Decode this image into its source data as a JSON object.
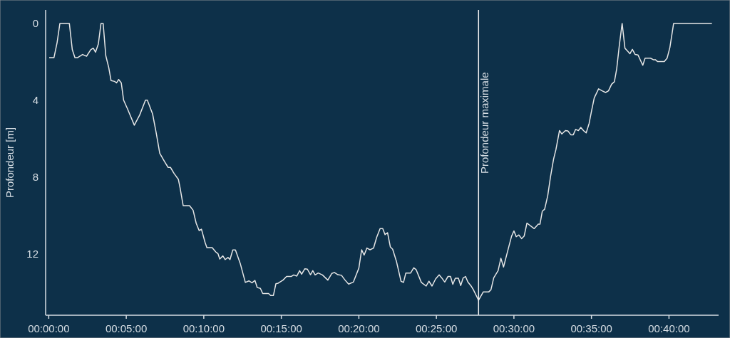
{
  "chart_data": {
    "type": "line",
    "ylabel": "Profondeur [m]",
    "x": [
      0.03,
      0.34,
      0.54,
      0.72,
      1.33,
      1.52,
      1.69,
      1.87,
      2.18,
      2.44,
      2.71,
      2.87,
      3.02,
      3.2,
      3.37,
      3.51,
      3.68,
      3.87,
      4.02,
      4.25,
      4.37,
      4.51,
      4.68,
      4.83,
      5.09,
      5.52,
      5.86,
      6.24,
      6.36,
      6.7,
      6.93,
      7.16,
      7.47,
      7.7,
      7.85,
      8.08,
      8.36,
      8.47,
      8.67,
      9.08,
      9.31,
      9.51,
      9.7,
      9.85,
      10.08,
      10.2,
      10.54,
      10.77,
      10.92,
      11.03,
      11.23,
      11.38,
      11.56,
      11.69,
      11.87,
      12.04,
      12.35,
      12.68,
      12.91,
      13.11,
      13.3,
      13.45,
      13.65,
      13.8,
      14.18,
      14.31,
      14.49,
      14.65,
      14.8,
      15.11,
      15.34,
      15.65,
      15.8,
      16.0,
      16.18,
      16.31,
      16.52,
      16.68,
      16.88,
      17.03,
      17.18,
      17.38,
      17.65,
      18.0,
      18.26,
      18.42,
      18.65,
      18.88,
      19.11,
      19.34,
      19.65,
      20.0,
      20.18,
      20.34,
      20.52,
      20.72,
      20.95,
      21.15,
      21.37,
      21.54,
      21.69,
      21.85,
      22.03,
      22.18,
      22.42,
      22.72,
      22.88,
      23.03,
      23.34,
      23.54,
      23.69,
      24.03,
      24.34,
      24.52,
      24.72,
      24.95,
      25.18,
      25.34,
      25.54,
      25.75,
      25.91,
      26.06,
      26.22,
      26.42,
      26.57,
      26.72,
      26.88,
      27.03,
      27.26,
      27.38,
      27.72,
      28.02,
      28.37,
      28.52,
      28.7,
      28.98,
      29.16,
      29.33,
      29.63,
      29.85,
      30.0,
      30.15,
      30.32,
      30.5,
      30.66,
      30.84,
      31.31,
      31.57,
      31.68,
      31.83,
      31.98,
      32.18,
      32.36,
      32.56,
      32.71,
      32.94,
      33.09,
      33.32,
      33.48,
      33.67,
      33.83,
      33.98,
      34.16,
      34.31,
      34.51,
      34.66,
      34.85,
      35.0,
      35.18,
      35.46,
      35.69,
      35.91,
      36.1,
      36.3,
      36.48,
      36.63,
      36.8,
      36.98,
      37.16,
      37.36,
      37.48,
      37.64,
      37.82,
      38.0,
      38.31,
      38.46,
      38.81,
      38.99,
      39.12,
      39.27,
      39.7,
      39.88,
      40.06,
      40.3,
      42.77
    ],
    "series": [
      {
        "color": "#e6e6e6",
        "values": [
          1.78,
          1.78,
          1.0,
          0,
          0,
          1.37,
          1.78,
          1.78,
          1.62,
          1.71,
          1.37,
          1.29,
          1.5,
          1.07,
          0,
          0,
          1.68,
          2.3,
          2.98,
          3.02,
          3.1,
          2.92,
          3.1,
          4.0,
          4.47,
          5.3,
          4.78,
          4.0,
          4.0,
          4.72,
          5.7,
          6.76,
          7.2,
          7.5,
          7.5,
          7.81,
          8.12,
          8.56,
          9.49,
          9.49,
          9.73,
          10.41,
          10.79,
          10.72,
          11.4,
          11.68,
          11.68,
          11.9,
          12.0,
          12.27,
          12.11,
          12.3,
          12.19,
          12.3,
          11.8,
          11.8,
          12.5,
          13.49,
          13.41,
          13.51,
          13.39,
          13.76,
          13.8,
          14.07,
          14.07,
          14.17,
          14.17,
          13.56,
          13.53,
          13.37,
          13.18,
          13.18,
          13.1,
          13.16,
          12.88,
          13.06,
          12.78,
          12.8,
          13.09,
          12.88,
          13.1,
          13.0,
          13.1,
          13.37,
          13.02,
          12.97,
          13.09,
          13.12,
          13.37,
          13.58,
          13.47,
          12.75,
          11.79,
          12.07,
          11.7,
          11.79,
          11.7,
          11.14,
          10.69,
          10.69,
          11.0,
          10.9,
          11.64,
          11.76,
          12.38,
          13.43,
          13.49,
          13.0,
          13.0,
          12.73,
          12.82,
          13.49,
          13.68,
          13.43,
          13.68,
          13.31,
          13.1,
          13.25,
          13.47,
          13.18,
          13.18,
          13.59,
          13.27,
          13.27,
          13.65,
          13.27,
          13.18,
          13.47,
          13.7,
          13.86,
          14.42,
          13.99,
          13.99,
          13.87,
          13.25,
          12.88,
          12.23,
          12.69,
          11.76,
          11.08,
          10.81,
          11.11,
          11.02,
          11.21,
          11.08,
          10.4,
          10.69,
          10.46,
          10.46,
          9.78,
          9.68,
          8.98,
          7.99,
          7.06,
          6.57,
          5.58,
          5.76,
          5.58,
          5.6,
          5.8,
          5.8,
          5.52,
          5.58,
          5.42,
          5.6,
          5.7,
          5.21,
          4.59,
          3.88,
          3.41,
          3.51,
          3.6,
          3.51,
          3.17,
          3.04,
          2.36,
          1.13,
          0,
          1.29,
          1.47,
          1.58,
          1.35,
          1.62,
          1.64,
          2.18,
          1.81,
          1.81,
          1.89,
          1.89,
          1.99,
          1.99,
          1.81,
          1.25,
          0,
          0
        ]
      }
    ],
    "xlim": [
      -0.2,
      43.2
    ],
    "xticks": [
      {
        "value": 0,
        "label": "00:00:00"
      },
      {
        "value": 5,
        "label": "00:05:00"
      },
      {
        "value": 10,
        "label": "00:10:00"
      },
      {
        "value": 15,
        "label": "00:15:00"
      },
      {
        "value": 20,
        "label": "00:20:00"
      },
      {
        "value": 25,
        "label": "00:25:00"
      },
      {
        "value": 30,
        "label": "00:30:00"
      },
      {
        "value": 35,
        "label": "00:35:00"
      },
      {
        "value": 40,
        "label": "00:40:00"
      }
    ],
    "ylim": [
      15.2,
      -0.7
    ],
    "yticks": [
      0,
      4,
      8,
      12
    ],
    "ref_lines": [
      {
        "axis": "x",
        "value": 27.72,
        "label": "Profondeur maximale",
        "color": "#f2f2f2"
      }
    ],
    "grid": false,
    "marker": "none",
    "line_style": "solid"
  }
}
